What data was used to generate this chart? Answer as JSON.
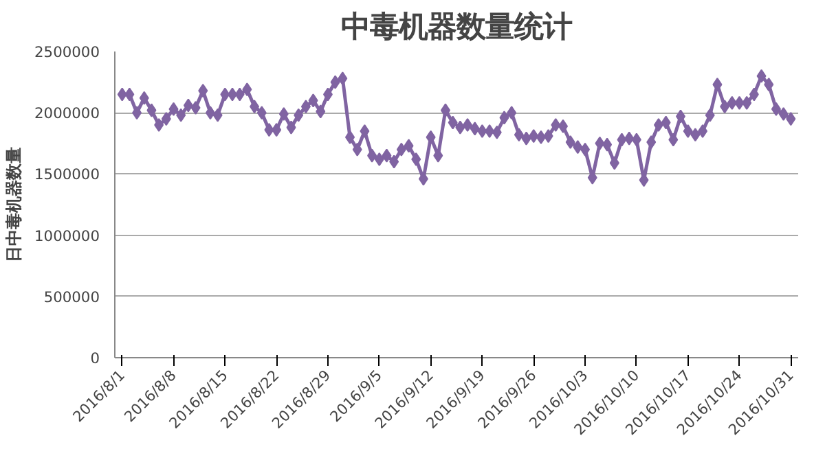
{
  "chart_data": {
    "type": "line",
    "title": "中毒机器数量统计",
    "ylabel": "日中毒机器数量",
    "x": [
      "2016-08-01",
      "2016-08-02",
      "2016-08-03",
      "2016-08-04",
      "2016-08-05",
      "2016-08-06",
      "2016-08-07",
      "2016-08-08",
      "2016-08-09",
      "2016-08-10",
      "2016-08-11",
      "2016-08-12",
      "2016-08-13",
      "2016-08-14",
      "2016-08-15",
      "2016-08-16",
      "2016-08-17",
      "2016-08-18",
      "2016-08-19",
      "2016-08-20",
      "2016-08-21",
      "2016-08-22",
      "2016-08-23",
      "2016-08-24",
      "2016-08-25",
      "2016-08-26",
      "2016-08-27",
      "2016-08-28",
      "2016-08-29",
      "2016-08-30",
      "2016-08-31",
      "2016-09-01",
      "2016-09-02",
      "2016-09-03",
      "2016-09-04",
      "2016-09-05",
      "2016-09-06",
      "2016-09-07",
      "2016-09-08",
      "2016-09-09",
      "2016-09-10",
      "2016-09-11",
      "2016-09-12",
      "2016-09-13",
      "2016-09-14",
      "2016-09-15",
      "2016-09-16",
      "2016-09-17",
      "2016-09-18",
      "2016-09-19",
      "2016-09-20",
      "2016-09-21",
      "2016-09-22",
      "2016-09-23",
      "2016-09-24",
      "2016-09-25",
      "2016-09-26",
      "2016-09-27",
      "2016-09-28",
      "2016-09-29",
      "2016-09-30",
      "2016-10-01",
      "2016-10-02",
      "2016-10-03",
      "2016-10-04",
      "2016-10-05",
      "2016-10-06",
      "2016-10-07",
      "2016-10-08",
      "2016-10-09",
      "2016-10-10",
      "2016-10-11",
      "2016-10-12",
      "2016-10-13",
      "2016-10-14",
      "2016-10-15",
      "2016-10-16",
      "2016-10-17",
      "2016-10-18",
      "2016-10-19",
      "2016-10-20",
      "2016-10-21",
      "2016-10-22",
      "2016-10-23",
      "2016-10-24",
      "2016-10-25",
      "2016-10-26",
      "2016-10-27",
      "2016-10-28",
      "2016-10-29",
      "2016-10-30",
      "2016-10-31"
    ],
    "series": [
      {
        "color": "#8064a2",
        "values": [
          2150000,
          2150000,
          2000000,
          2120000,
          2020000,
          1900000,
          1950000,
          2030000,
          1980000,
          2060000,
          2040000,
          2180000,
          2000000,
          1980000,
          2150000,
          2150000,
          2150000,
          2190000,
          2050000,
          2000000,
          1860000,
          1860000,
          1990000,
          1880000,
          1980000,
          2050000,
          2100000,
          2010000,
          2150000,
          2250000,
          2280000,
          1800000,
          1700000,
          1850000,
          1650000,
          1620000,
          1650000,
          1600000,
          1700000,
          1730000,
          1620000,
          1460000,
          1800000,
          1650000,
          2020000,
          1920000,
          1880000,
          1900000,
          1870000,
          1850000,
          1850000,
          1840000,
          1960000,
          2000000,
          1820000,
          1790000,
          1810000,
          1800000,
          1810000,
          1900000,
          1890000,
          1760000,
          1720000,
          1700000,
          1470000,
          1750000,
          1740000,
          1590000,
          1780000,
          1790000,
          1780000,
          1450000,
          1760000,
          1900000,
          1920000,
          1780000,
          1970000,
          1850000,
          1820000,
          1850000,
          1980000,
          2230000,
          2050000,
          2080000,
          2080000,
          2080000,
          2150000,
          2300000,
          2230000,
          2030000,
          1990000,
          1950000
        ]
      }
    ],
    "xlim": [
      "2016-07-31",
      "2016-11-01"
    ],
    "xticks": [
      {
        "value": "2016-08-01",
        "label": "2016/8/1"
      },
      {
        "value": "2016-08-08",
        "label": "2016/8/8"
      },
      {
        "value": "2016-08-15",
        "label": "2016/8/15"
      },
      {
        "value": "2016-08-22",
        "label": "2016/8/22"
      },
      {
        "value": "2016-08-29",
        "label": "2016/8/29"
      },
      {
        "value": "2016-09-05",
        "label": "2016/9/5"
      },
      {
        "value": "2016-09-12",
        "label": "2016/9/12"
      },
      {
        "value": "2016-09-19",
        "label": "2016/9/19"
      },
      {
        "value": "2016-09-26",
        "label": "2016/9/26"
      },
      {
        "value": "2016-10-03",
        "label": "2016/10/3"
      },
      {
        "value": "2016-10-10",
        "label": "2016/10/10"
      },
      {
        "value": "2016-10-17",
        "label": "2016/10/17"
      },
      {
        "value": "2016-10-24",
        "label": "2016/10/24"
      },
      {
        "value": "2016-10-31",
        "label": "2016/10/31"
      }
    ],
    "ylim": [
      0,
      2500000
    ],
    "yticks": [
      0,
      500000,
      1000000,
      1500000,
      2000000,
      2500000
    ],
    "grid": "y",
    "marker": "diamond",
    "line_style": "solid"
  }
}
